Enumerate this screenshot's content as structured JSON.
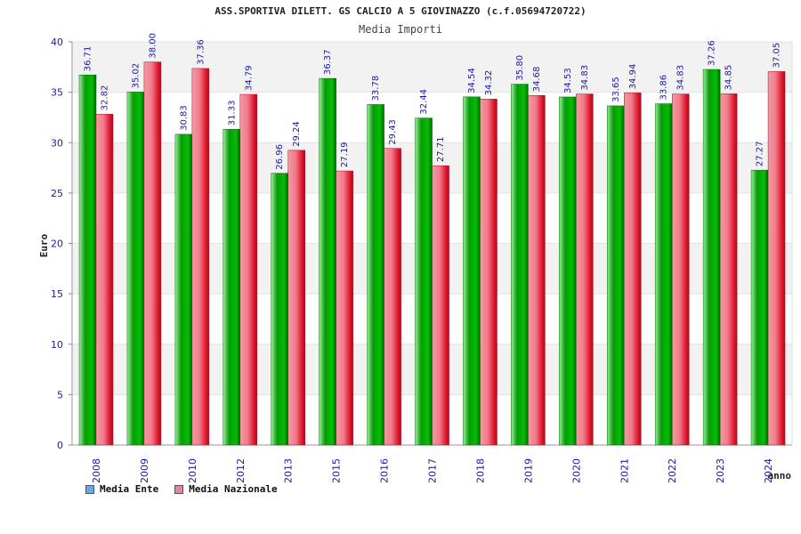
{
  "chart_data": {
    "type": "bar",
    "title": "ASS.SPORTIVA DILETT. GS CALCIO A 5 GIOVINAZZO (c.f.05694720722)",
    "subtitle": "Media Importi",
    "xlabel": "anno",
    "ylabel": "Euro",
    "ylim": [
      0,
      40
    ],
    "yticks": [
      "0",
      "5",
      "10",
      "15",
      "20",
      "25",
      "30",
      "35",
      "40"
    ],
    "categories": [
      "2008",
      "2009",
      "2010",
      "2012",
      "2013",
      "2015",
      "2016",
      "2017",
      "2018",
      "2019",
      "2020",
      "2021",
      "2022",
      "2023",
      "2024"
    ],
    "series": [
      {
        "name": "Media Ente",
        "values": [
          36.71,
          35.02,
          30.83,
          31.33,
          26.96,
          36.37,
          33.78,
          32.44,
          34.54,
          35.8,
          34.53,
          33.65,
          33.86,
          37.26,
          27.27
        ],
        "labels": [
          "36.71",
          "35.02",
          "30.83",
          "31.33",
          "26.96",
          "36.37",
          "33.78",
          "32.44",
          "34.54",
          "35.80",
          "34.53",
          "33.65",
          "33.86",
          "37.26",
          "27.27"
        ],
        "color": "#00aa00",
        "legend_color": "#66aaee"
      },
      {
        "name": "Media Nazionale",
        "values": [
          32.82,
          38.0,
          37.36,
          34.79,
          29.24,
          27.19,
          29.43,
          27.71,
          34.32,
          34.68,
          34.83,
          34.94,
          34.83,
          34.85,
          37.05
        ],
        "labels": [
          "32.82",
          "38.00",
          "37.36",
          "34.79",
          "29.24",
          "27.19",
          "29.43",
          "27.71",
          "34.32",
          "34.68",
          "34.83",
          "34.94",
          "34.83",
          "34.85",
          "37.05"
        ],
        "color": "#ee3344",
        "legend_color": "#dd88aa"
      }
    ],
    "grid": true,
    "legend_position": "bottom-left"
  }
}
